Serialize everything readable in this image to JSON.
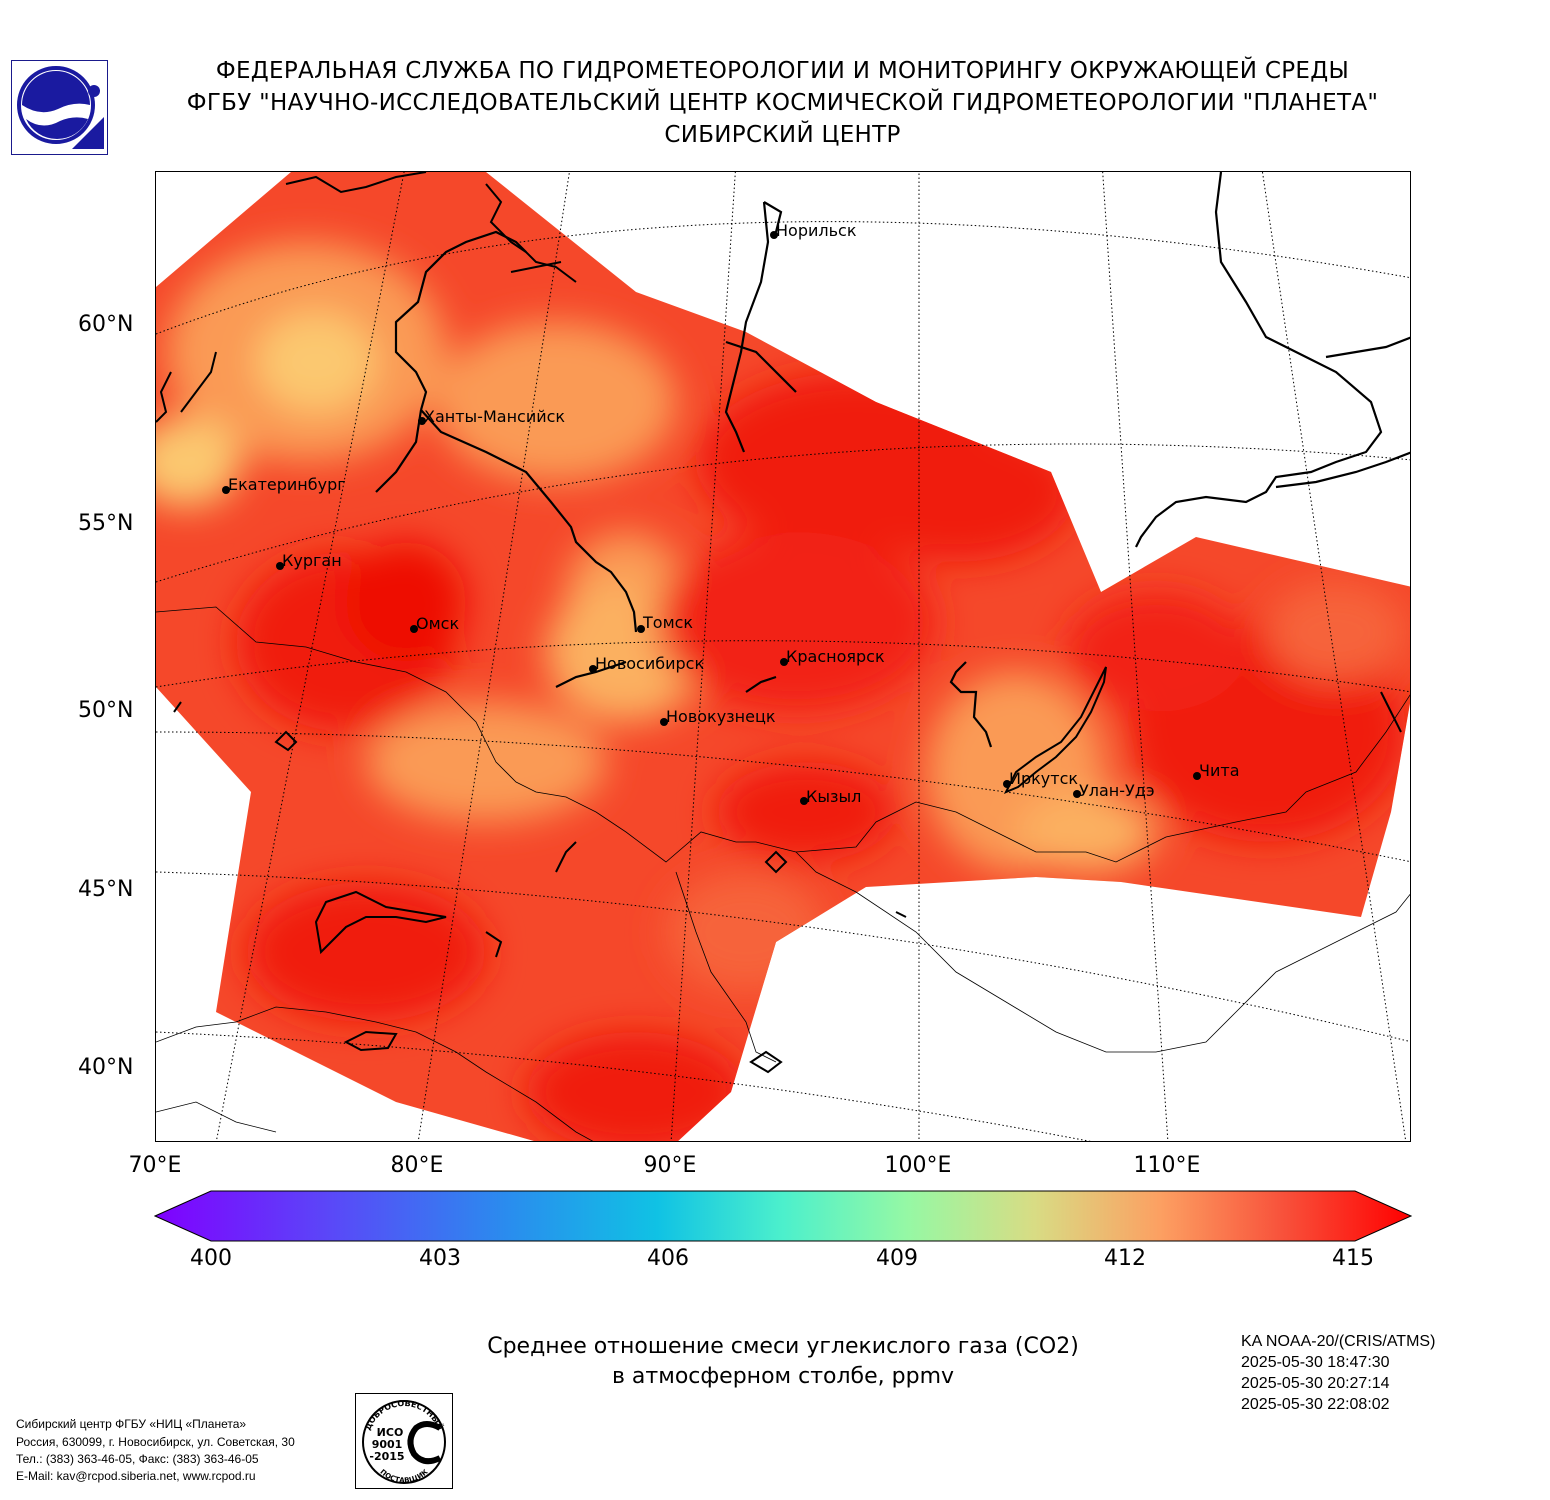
{
  "header": {
    "line1": "ФЕДЕРАЛЬНАЯ СЛУЖБА ПО ГИДРОМЕТЕОРОЛОГИИ И МОНИТОРИНГУ ОКРУЖАЮЩЕЙ СРЕДЫ",
    "line2": "ФГБУ \"НАУЧНО-ИССЛЕДОВАТЕЛЬСКИЙ ЦЕНТР КОСМИЧЕСКОЙ ГИДРОМЕТЕОРОЛОГИИ \"ПЛАНЕТА\"",
    "line3": "СИБИРСКИЙ ЦЕНТР"
  },
  "map": {
    "lat_labels": [
      "60°N",
      "55°N",
      "50°N",
      "45°N",
      "40°N"
    ],
    "lon_labels": [
      "70°E",
      "80°E",
      "90°E",
      "100°E",
      "110°E"
    ],
    "cities": [
      "Норильск",
      "Ханты-Мансийск",
      "Екатеринбург",
      "Курган",
      "Омск",
      "Томск",
      "Новосибирск",
      "Красноярск",
      "Новокузнецк",
      "Иркутск",
      "Улан-Удэ",
      "Чита",
      "Кызыл"
    ]
  },
  "colorbar": {
    "ticks": [
      "400",
      "403",
      "406",
      "409",
      "412",
      "415"
    ],
    "min": 400,
    "max": 415,
    "extend": "both",
    "colormap": "rainbow"
  },
  "product": {
    "title_line1": "Среднее отношение смеси углекислого газа (CO2)",
    "title_line2": "в атмосферном столбе, ppmv"
  },
  "satellite": {
    "name": "KA NOAA-20/(CRIS/ATMS)",
    "times": [
      "2025-05-30 18:47:30",
      "2025-05-30 20:27:14",
      "2025-05-30 22:08:02"
    ]
  },
  "footer": {
    "lines": [
      "Сибирский центр ФГБУ «НИЦ «Планета»",
      "Россия, 630099, г. Новосибирск, ул. Советская, 30",
      "Тел.: (383) 363-46-05, Факс: (383) 363-46-05",
      "E-Mail: kav@rcpod.siberia.net, www.rcpod.ru"
    ]
  },
  "iso": {
    "top": "ДОБРОСОВЕСТНЫЙ",
    "mark": "ИСО",
    "num": "9001",
    "year": "-2015",
    "bottom": "ПОСТАВЩИК"
  },
  "colors": {
    "field_dark": "#f01a0a",
    "field_mid": "#f7502a",
    "field_light": "#fa9a55",
    "field_pale": "#fbc870"
  }
}
